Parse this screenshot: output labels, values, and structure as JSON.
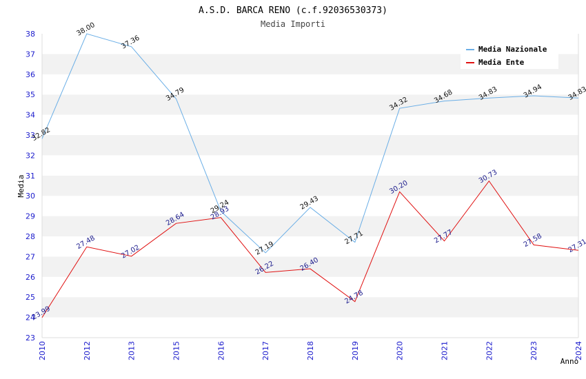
{
  "chart_data": {
    "type": "line",
    "title": "A.S.D. BARCA RENO (c.f.92036530373)",
    "subtitle": "Media Importi",
    "xlabel": "Anno",
    "ylabel": "Media",
    "ylim": [
      23,
      38
    ],
    "y_ticks": [
      "23",
      "24",
      "25",
      "26",
      "27",
      "28",
      "29",
      "30",
      "31",
      "32",
      "33",
      "34",
      "35",
      "36",
      "37",
      "38"
    ],
    "categories": [
      "2010",
      "2012",
      "2013",
      "2015",
      "2016",
      "2017",
      "2018",
      "2019",
      "2020",
      "2021",
      "2022",
      "2023",
      "2024"
    ],
    "grid": "horizontal bands",
    "legend_position": "top-right",
    "series": [
      {
        "name": "Media Nazionale",
        "color": "#6aaee6",
        "label_color": "#111111",
        "values": [
          32.82,
          38.0,
          37.36,
          34.79,
          29.24,
          27.19,
          29.43,
          27.71,
          34.32,
          34.68,
          34.83,
          34.94,
          34.83
        ],
        "labels": [
          "32.82",
          "38.00",
          "37.36",
          "34.79",
          "29.24",
          "27.19",
          "29.43",
          "27.71",
          "34.32",
          "34.68",
          "34.83",
          "34.94",
          "34.83"
        ]
      },
      {
        "name": "Media Ente",
        "color": "#e01010",
        "label_color": "#1a1a8c",
        "values": [
          23.99,
          27.48,
          27.02,
          28.64,
          28.93,
          26.22,
          26.4,
          24.78,
          30.2,
          27.77,
          30.73,
          27.58,
          27.31
        ],
        "labels": [
          "23.99",
          "27.48",
          "27.02",
          "28.64",
          "28.93",
          "26.22",
          "26.40",
          "24.78",
          "30.20",
          "27.77",
          "30.73",
          "27.58",
          "27.31"
        ]
      }
    ]
  }
}
